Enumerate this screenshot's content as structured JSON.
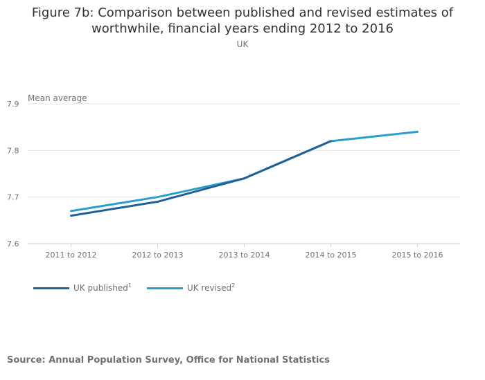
{
  "chart_data": {
    "type": "line",
    "title_line1": "Figure 7b: Comparison between published and revised estimates of",
    "title_line2": "worthwhile, financial years ending 2012 to 2016",
    "subtitle": "UK",
    "ylabel": "Mean average",
    "xlabel": "",
    "categories": [
      "2011 to 2012",
      "2012 to 2013",
      "2013 to 2014",
      "2014 to 2015",
      "2015 to 2016"
    ],
    "ylim": [
      7.6,
      7.9
    ],
    "yticks": [
      "7.6",
      "7.7",
      "7.8",
      "7.9"
    ],
    "grid": true,
    "legend_position": "bottom-left",
    "series": [
      {
        "name": "UK published",
        "sup": "1",
        "color": "#206095",
        "values": [
          7.66,
          7.69,
          7.74,
          7.82,
          null
        ]
      },
      {
        "name": "UK revised",
        "sup": "2",
        "color": "#27a0cc",
        "values": [
          7.67,
          7.7,
          7.74,
          7.82,
          7.84
        ]
      }
    ],
    "source": "Source: Annual Population Survey, Office for National Statistics"
  }
}
